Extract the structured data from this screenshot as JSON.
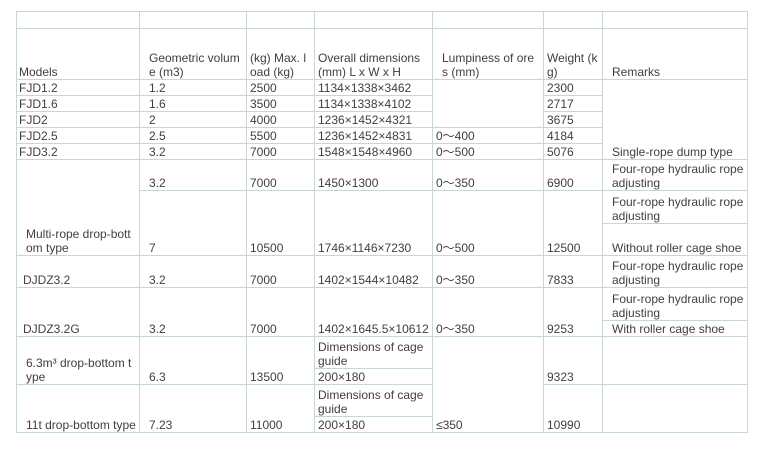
{
  "header": {
    "models": "Models",
    "volume": "Geometric volume (m3)",
    "load": "(kg) Max. load (kg)",
    "dimensions": "Overall dimensions (mm) L x W x H",
    "lumpiness": "Lumpiness of ores (mm)",
    "weight": "Weight (kg)",
    "remarks": "Remarks"
  },
  "rows": {
    "fjd12": {
      "model": "FJD1.2",
      "volume": "1.2",
      "load": "2500",
      "dim": "1134×1338×3462",
      "weight": "2300"
    },
    "fjd16": {
      "model": "FJD1.6",
      "volume": "1.6",
      "load": "3500",
      "dim": "1134×1338×4102",
      "weight": "2717"
    },
    "fjd2": {
      "model": "FJD2",
      "volume": "2",
      "load": "4000",
      "dim": "1236×1452×4321",
      "weight": "3675"
    },
    "fjd25": {
      "model": "FJD2.5",
      "volume": "2.5",
      "load": "5500",
      "dim": "1236×1452×4831",
      "lump": "0～400",
      "weight": "4184"
    },
    "fjd32": {
      "model": "FJD3.2",
      "volume": "3.2",
      "load": "7000",
      "dim": "1548×1548×4960",
      "lump": "0～500",
      "weight": "5076",
      "remarks": "Single-rope dump type"
    },
    "multi": {
      "model": "Multi-rope drop-bottom type"
    },
    "multi_a": {
      "volume": "3.2",
      "load": "7000",
      "dim": "1450×1300",
      "lump": "0～350",
      "weight": "6900",
      "remarks": "Four-rope hydraulic rope adjusting"
    },
    "multi_b": {
      "volume": "7",
      "load": "10500",
      "dim": "1746×1146×7230",
      "lump": "0～500",
      "weight": "12500",
      "remarks1": "Four-rope hydraulic rope adjusting",
      "remarks2": "Without roller cage shoe"
    },
    "djdz32": {
      "model": "DJDZ3.2",
      "volume": "3.2",
      "load": "7000",
      "dim": "1402×1544×10482",
      "lump": "0～350",
      "weight": "7833",
      "remarks": "Four-rope hydraulic rope adjusting"
    },
    "djdz32g": {
      "model": "DJDZ3.2G",
      "volume": "3.2",
      "load": "7000",
      "dim": "1402×1645.5×10612",
      "lump": "0～350",
      "weight": "9253",
      "remarks1": "Four-rope hydraulic rope adjusting",
      "remarks2": "With roller cage shoe"
    },
    "m63": {
      "model": "6.3m³ drop-bottom type",
      "volume": "6.3",
      "load": "13500",
      "dim_label": "Dimensions of cage guide",
      "dim": "200×180",
      "weight": "9323"
    },
    "t11": {
      "model": "11t drop-bottom type",
      "volume": "7.23",
      "load": "11000",
      "dim_label": "Dimensions of cage guide",
      "dim": "200×180",
      "lump": "≤350",
      "weight": "10990"
    }
  }
}
